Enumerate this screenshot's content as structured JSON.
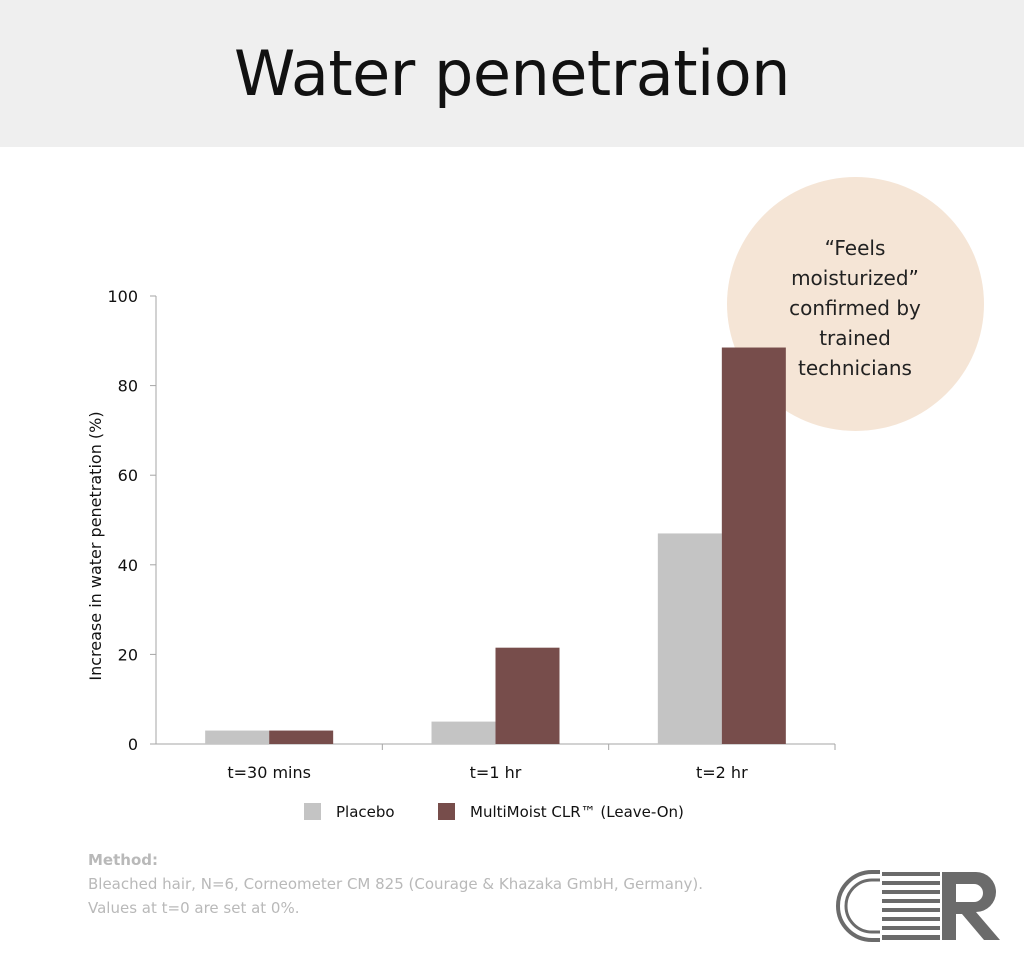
{
  "slide": {
    "title": "Water penetration",
    "callout": "“Feels moisturized” confirmed by trained technicians"
  },
  "chart_data": {
    "type": "bar",
    "categories": [
      "t=30 mins",
      "t=1 hr",
      "t=2 hr"
    ],
    "series": [
      {
        "name": "Placebo",
        "values": [
          3,
          5,
          47
        ],
        "color": "#c4c4c4"
      },
      {
        "name": "MultiMoist CLR™ (Leave-On)",
        "values": [
          3,
          21.5,
          88.5
        ],
        "color": "#774d4b"
      }
    ],
    "ylabel": "Increase in water penetration (%)",
    "xlabel": "",
    "ylim": [
      0,
      100
    ],
    "yticks": [
      0,
      20,
      40,
      60,
      80,
      100
    ],
    "grid": false,
    "legend": "bottom"
  },
  "method": {
    "label": "Method:",
    "line1": "Bleached hair, N=6, Corneometer CM 825 (Courage & Khazaka GmbH, Germany).",
    "line2": "Values at t=0 are set at 0%."
  },
  "logo": {
    "text": "CLR",
    "colors": {
      "outline": "#6b6b6b",
      "bars": "#6b6b6b"
    }
  }
}
